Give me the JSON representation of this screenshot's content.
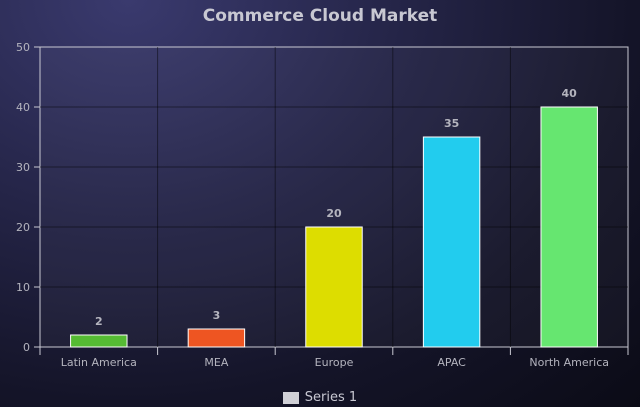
{
  "chart_data": {
    "type": "bar",
    "title": "Commerce Cloud Market",
    "categories": [
      "Latin America",
      "MEA",
      "Europe",
      "APAC",
      "North America"
    ],
    "series": [
      {
        "name": "Series 1",
        "values": [
          2,
          3,
          20,
          35,
          40
        ],
        "colors": [
          "#55bb33",
          "#ee5522",
          "#dddd00",
          "#22ccee",
          "#66e670"
        ]
      }
    ],
    "ylim": [
      0,
      50
    ],
    "yticks": [
      0,
      10,
      20,
      30,
      40,
      50
    ],
    "grid": true,
    "legend": "bottom-center",
    "data_labels": true
  }
}
